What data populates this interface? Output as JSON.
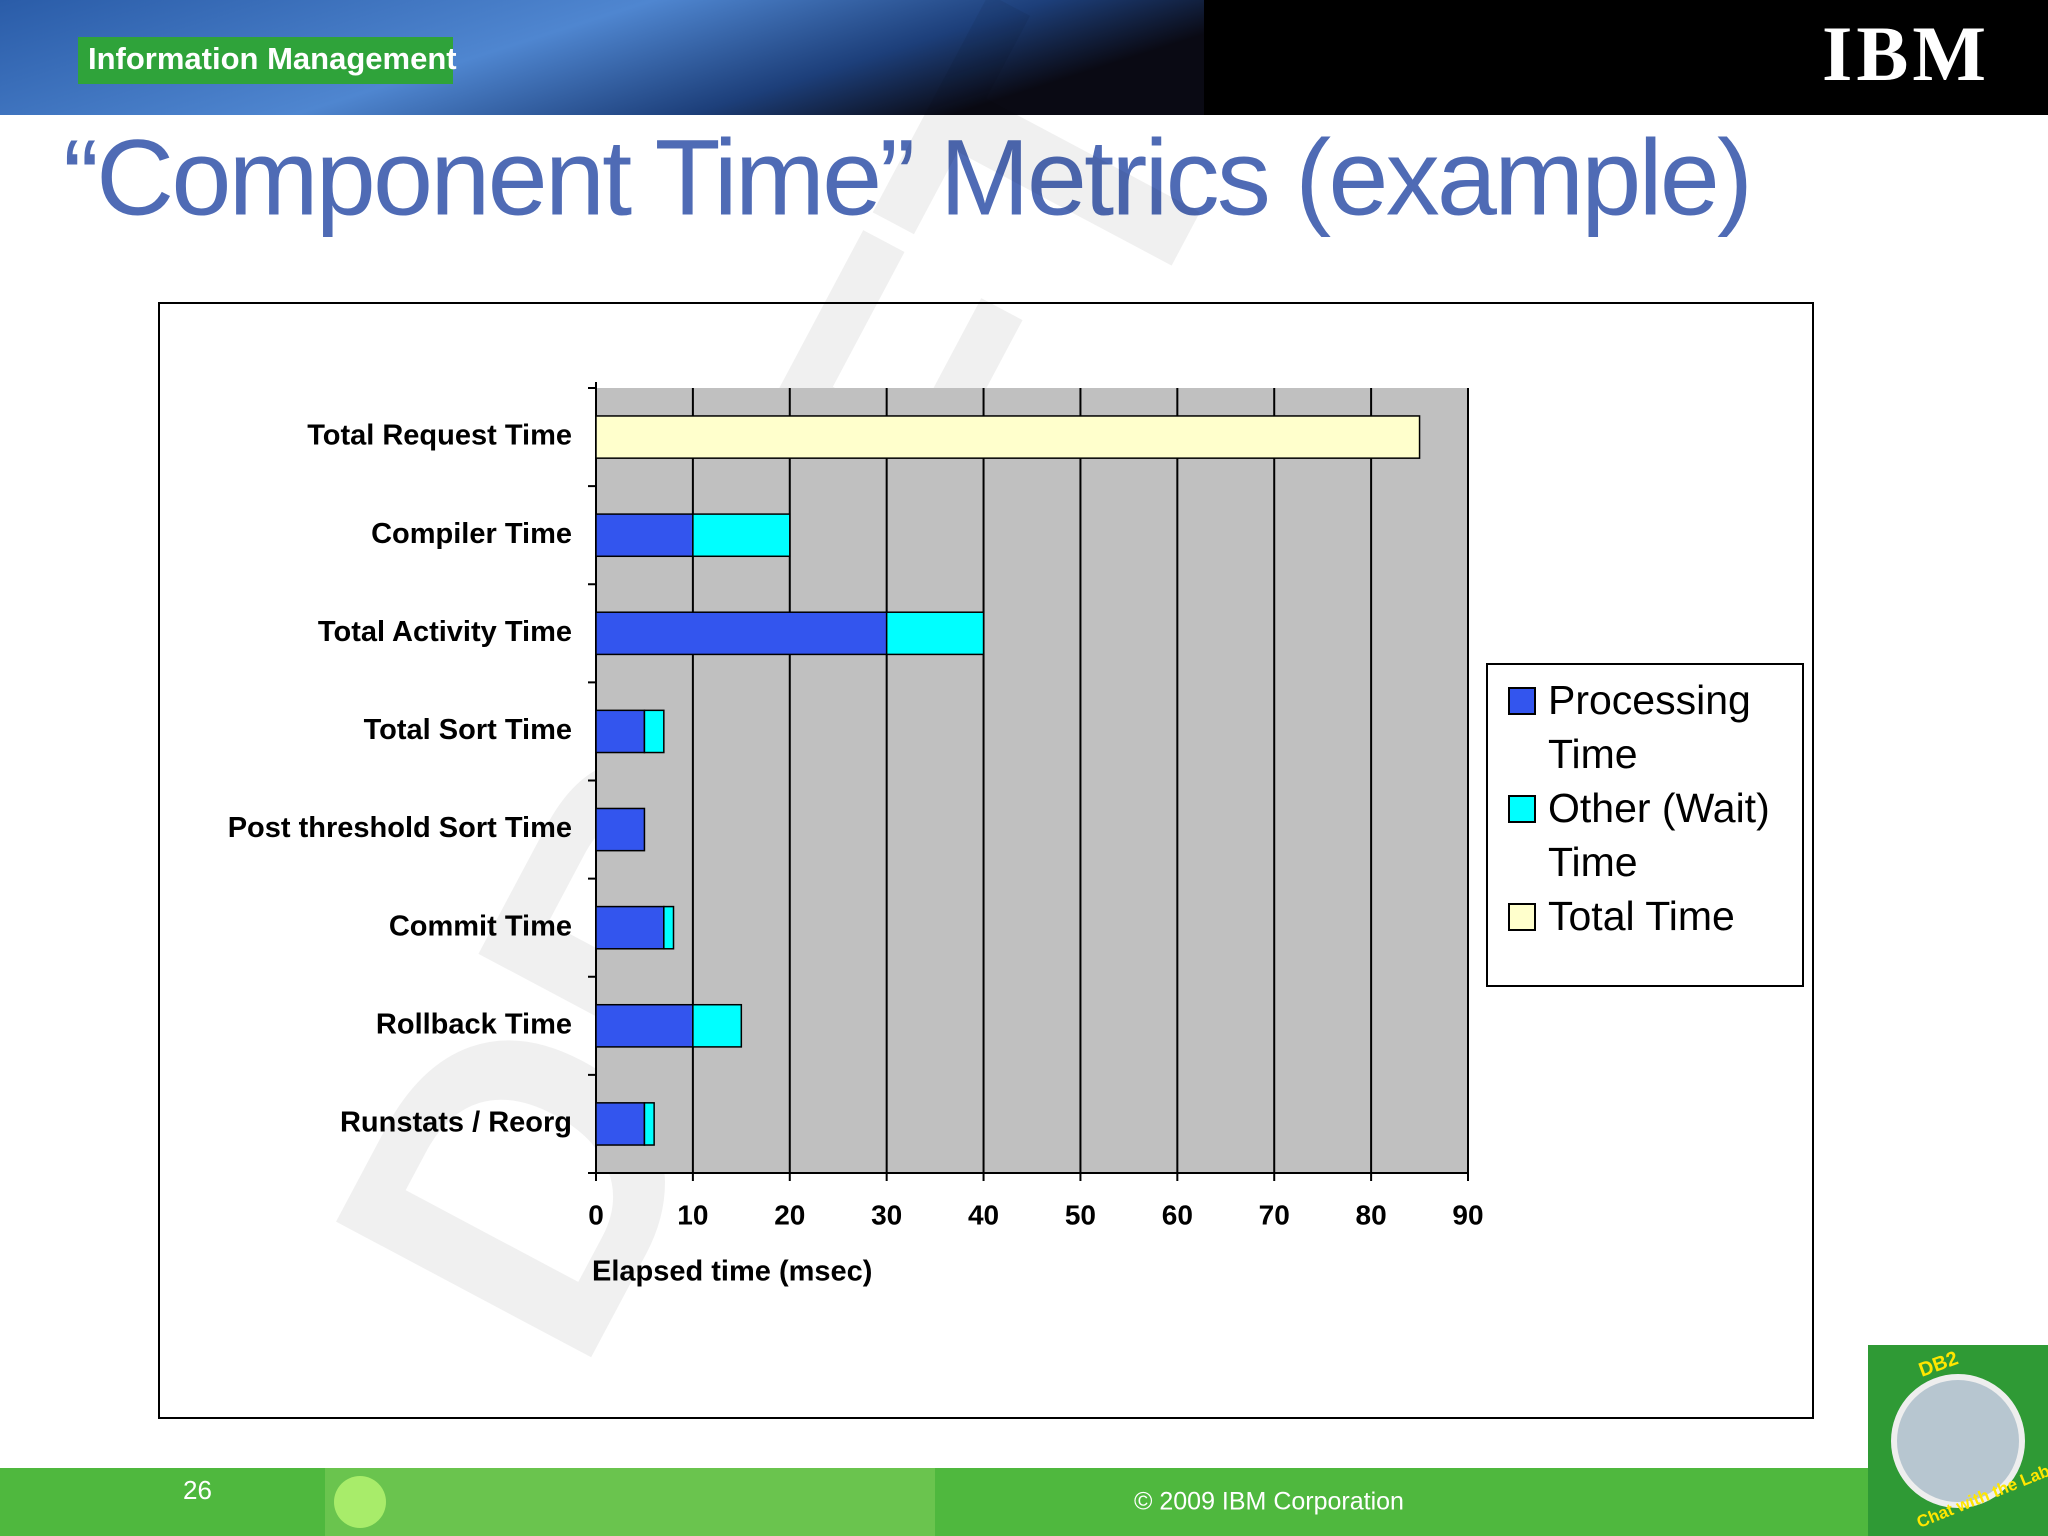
{
  "header": {
    "section": "Information Management",
    "logo": "IBM",
    "title": "“Component Time” Metrics (example)",
    "watermark": "DRAFT"
  },
  "chart_data": {
    "type": "barh_stacked",
    "categories": [
      "Total Request Time",
      "Compiler Time",
      "Total Activity Time",
      "Total Sort Time",
      "Post threshold Sort Time",
      "Commit Time",
      "Rollback Time",
      "Runstats / Reorg"
    ],
    "series": [
      {
        "name": "Processing Time",
        "color": "#3355ee",
        "values": [
          null,
          10,
          30,
          5,
          5,
          7,
          10,
          5
        ]
      },
      {
        "name": "Other (Wait) Time",
        "color": "#00ffff",
        "values": [
          null,
          10,
          10,
          2,
          null,
          1,
          5,
          1
        ]
      },
      {
        "name": "Total Time",
        "color": "#ffffcc",
        "values": [
          85,
          null,
          null,
          null,
          null,
          null,
          null,
          null
        ]
      }
    ],
    "xlabel": "Elapsed time (msec)",
    "xlim": [
      0,
      90
    ],
    "xticks": [
      0,
      10,
      20,
      30,
      40,
      50,
      60,
      70,
      80,
      90
    ],
    "grid": true,
    "legend": "right"
  },
  "footer": {
    "page": "26",
    "copyright": "© 2009  IBM Corporation",
    "badge_top": "DB2",
    "badge_bottom": "Chat with the Lab"
  }
}
